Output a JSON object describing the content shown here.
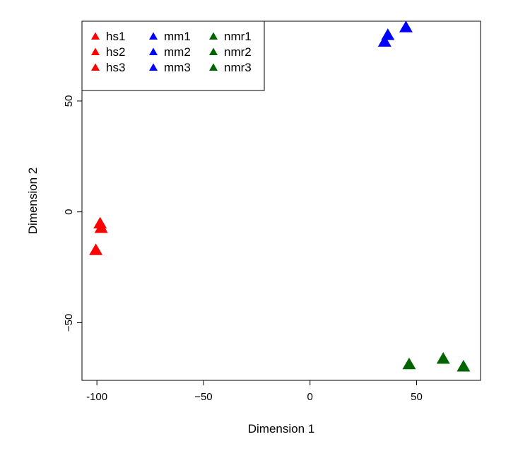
{
  "chart_data": {
    "type": "scatter",
    "xlabel": "Dimension 1",
    "ylabel": "Dimension 2",
    "xlim": [
      -107,
      80
    ],
    "ylim": [
      -76,
      86
    ],
    "x_ticks": [
      -100,
      -50,
      0,
      50
    ],
    "x_tick_labels": [
      "-100",
      "−50",
      "0",
      "50"
    ],
    "y_ticks": [
      -50,
      0,
      50
    ],
    "y_tick_labels": [
      "−50",
      "0",
      "50"
    ],
    "grid": false,
    "legend_position": "top-left",
    "marker": "filled-triangle",
    "series": [
      {
        "name": "hs1",
        "color": "#FF0000",
        "x": -98.5,
        "y": -5.5
      },
      {
        "name": "hs2",
        "color": "#FF0000",
        "x": -98.0,
        "y": -7.5
      },
      {
        "name": "hs3",
        "color": "#FF0000",
        "x": -100.5,
        "y": -17.5
      },
      {
        "name": "mm1",
        "color": "#0000FF",
        "x": 45.0,
        "y": 83.0
      },
      {
        "name": "mm2",
        "color": "#0000FF",
        "x": 36.5,
        "y": 79.5
      },
      {
        "name": "mm3",
        "color": "#0000FF",
        "x": 35.0,
        "y": 76.5
      },
      {
        "name": "nmr1",
        "color": "#006400",
        "x": 62.5,
        "y": -66.5
      },
      {
        "name": "nmr2",
        "color": "#006400",
        "x": 46.5,
        "y": -69.0
      },
      {
        "name": "nmr3",
        "color": "#006400",
        "x": 72.0,
        "y": -70.0
      }
    ]
  }
}
